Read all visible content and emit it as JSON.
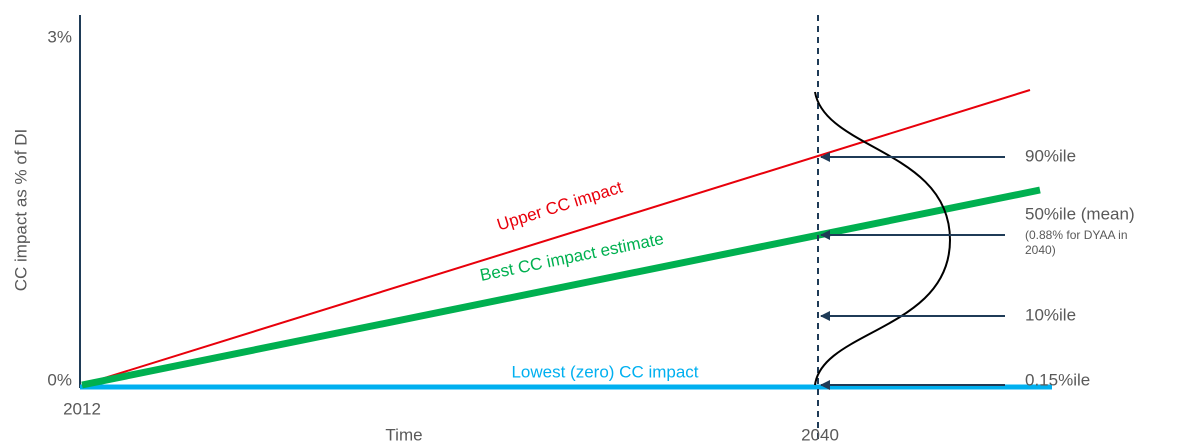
{
  "axis": {
    "y_label": "CC impact as % of DI",
    "y_top": "3%",
    "y_bottom": "0%",
    "x_start": "2012",
    "x_label": "Time",
    "x_end": "2040"
  },
  "lines": {
    "upper": "Upper CC impact",
    "best": "Best CC impact estimate",
    "lowest": "Lowest (zero) CC impact"
  },
  "percentiles": [
    "90%ile",
    "50%ile (mean)",
    "10%ile",
    "0.15%ile"
  ],
  "mean_note": "(0.88% for DYAA in 2040)"
}
